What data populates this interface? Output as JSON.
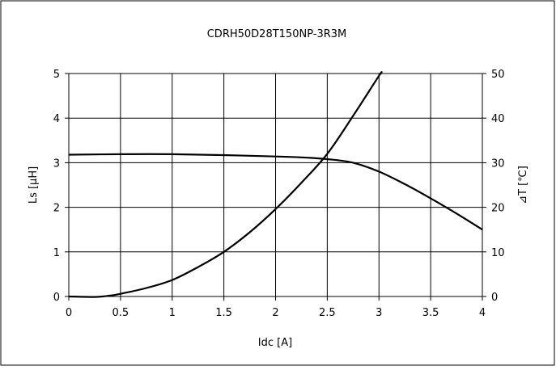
{
  "chart_data": {
    "type": "line",
    "title": "CDRH50D28T150NP-3R3M",
    "xlabel": "Idc [A]",
    "ylabel": "Ls [μH]",
    "y2label": "⊿T [℃]",
    "xlim": [
      0,
      4
    ],
    "ylim": [
      0,
      5
    ],
    "y2lim": [
      0,
      50
    ],
    "xticks": [
      "0",
      "0.5",
      "1",
      "1.5",
      "2",
      "2.5",
      "3",
      "3.5",
      "4"
    ],
    "yticks": [
      "0",
      "1",
      "2",
      "3",
      "4",
      "5"
    ],
    "y2ticks": [
      "0",
      "10",
      "20",
      "30",
      "40",
      "50"
    ],
    "grid": true,
    "series": [
      {
        "axis": "left",
        "x": [
          0,
          0.5,
          1,
          1.5,
          2,
          2.25,
          2.5,
          2.75,
          3,
          3.25,
          3.5,
          3.75,
          4
        ],
        "y": [
          3.18,
          3.19,
          3.19,
          3.17,
          3.14,
          3.12,
          3.08,
          3.0,
          2.8,
          2.52,
          2.2,
          1.86,
          1.5
        ]
      },
      {
        "axis": "right",
        "x": [
          0,
          0.25,
          0.4,
          0.5,
          0.75,
          1,
          1.25,
          1.5,
          1.75,
          2,
          2.25,
          2.5,
          2.75,
          3,
          3.02
        ],
        "y": [
          0,
          -0.1,
          0.2,
          0.6,
          1.9,
          3.7,
          6.6,
          10.0,
          14.4,
          19.6,
          25.5,
          32.0,
          40.5,
          49.5,
          50.0
        ]
      }
    ]
  }
}
